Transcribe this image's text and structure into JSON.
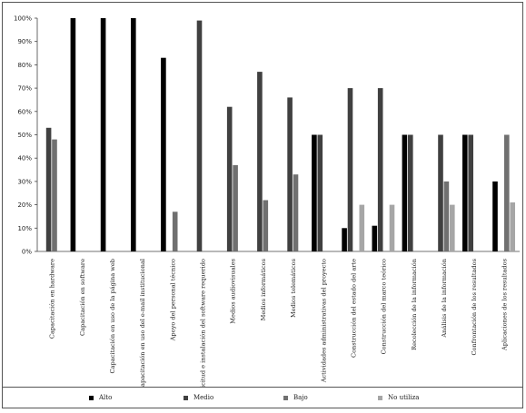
{
  "chart_data": {
    "type": "bar",
    "title": "",
    "xlabel": "",
    "ylabel": "",
    "ylim": [
      0,
      100
    ],
    "yticks": [
      "0%",
      "10%",
      "20%",
      "30%",
      "40%",
      "50%",
      "60%",
      "70%",
      "80%",
      "90%",
      "100%"
    ],
    "grid": false,
    "legend_position": "bottom",
    "categories": [
      "Capacitación en hardware",
      "Capacitación en software",
      "Capacitación en uso de la página web",
      "Capacitación en uso del e-mail institucional",
      "Apoyo del personal técnico",
      "Solicitud e instalación del software requerido",
      "Medios audiovisuales",
      "Medios informáticos",
      "Medios telemáticos",
      "Actividades administrativas del proyecto",
      "Construcción del estado del arte",
      "Construcción del marco teórico",
      "Recolección de la información",
      "Análisis de la información",
      "Confrontación de los resultados",
      "Aplicaciones de los resultados"
    ],
    "series": [
      {
        "name": "Alto",
        "color": "#000000",
        "values": [
          0,
          100,
          100,
          100,
          83,
          0,
          0,
          0,
          0,
          50,
          10,
          11,
          50,
          0,
          50,
          30
        ]
      },
      {
        "name": "Medio",
        "color": "#404040",
        "values": [
          53,
          0,
          0,
          0,
          0,
          99,
          62,
          77,
          66,
          50,
          70,
          70,
          50,
          50,
          50,
          0
        ]
      },
      {
        "name": "Bajo",
        "color": "#707070",
        "values": [
          48,
          0,
          0,
          0,
          17,
          0,
          37,
          22,
          33,
          0,
          0,
          0,
          0,
          30,
          0,
          50
        ]
      },
      {
        "name": "No utiliza",
        "color": "#a6a6a6",
        "values": [
          0,
          0,
          0,
          0,
          0,
          0,
          0,
          0,
          0,
          0,
          20,
          20,
          0,
          20,
          0,
          21
        ]
      }
    ]
  }
}
